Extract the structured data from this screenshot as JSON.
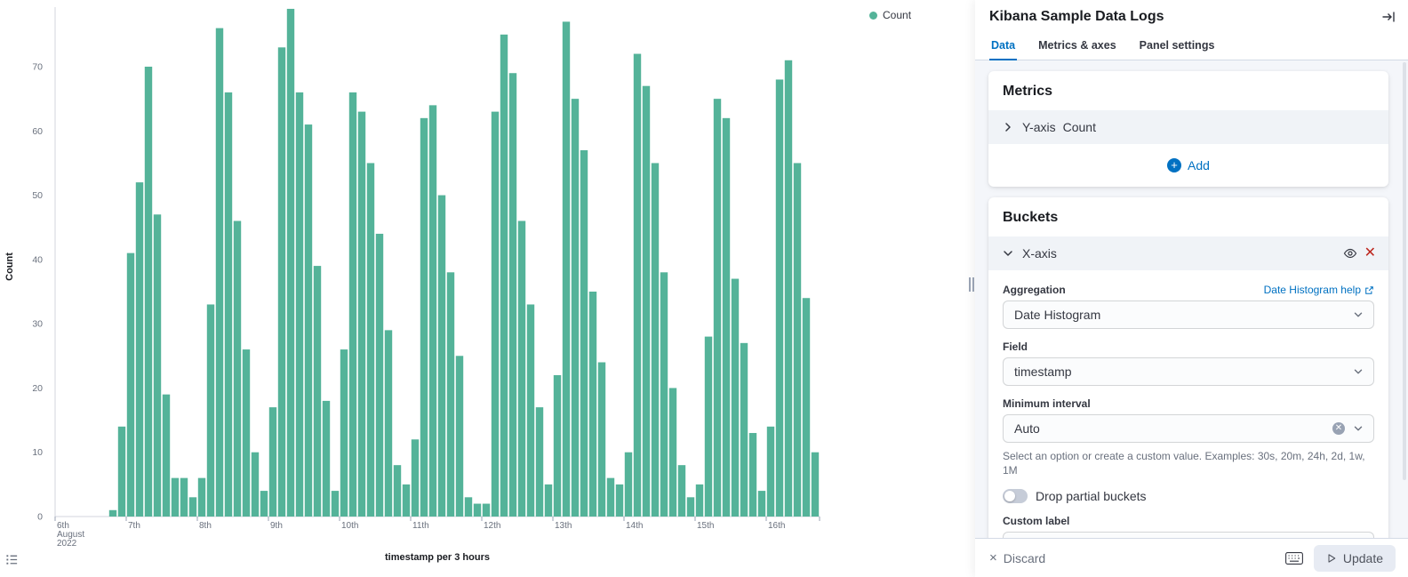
{
  "colors": {
    "bar_green": "#54B399",
    "accent_blue": "#0071c2",
    "danger_red": "#bd271e"
  },
  "chart_data": {
    "type": "bar",
    "title": "",
    "xlabel": "timestamp per 3 hours",
    "ylabel": "Count",
    "series_name": "Count",
    "bar_color": "#54B399",
    "grid": false,
    "legend": {
      "label": "Count",
      "position": "top-right"
    },
    "y_ticks": [
      0,
      10,
      20,
      30,
      40,
      50,
      60,
      70
    ],
    "ylim": [
      0,
      80
    ],
    "buckets_per_day": 8,
    "x_tick_labels": [
      "6th",
      "7th",
      "8th",
      "9th",
      "10th",
      "11th",
      "12th",
      "13th",
      "14th",
      "15th",
      "16th"
    ],
    "x_first_tick_sublabels": [
      "August",
      "2022"
    ],
    "values": [
      0,
      0,
      0,
      0,
      0,
      0,
      1,
      14,
      41,
      52,
      70,
      47,
      19,
      6,
      6,
      3,
      6,
      33,
      76,
      66,
      46,
      26,
      10,
      4,
      17,
      73,
      79,
      66,
      61,
      39,
      18,
      4,
      26,
      66,
      63,
      55,
      44,
      29,
      8,
      5,
      12,
      62,
      64,
      50,
      38,
      25,
      3,
      2,
      2,
      63,
      75,
      69,
      46,
      33,
      17,
      5,
      22,
      77,
      65,
      57,
      35,
      24,
      6,
      5,
      10,
      72,
      67,
      55,
      38,
      20,
      8,
      3,
      5,
      28,
      65,
      62,
      37,
      27,
      13,
      4,
      14,
      68,
      71,
      55,
      34,
      10
    ]
  },
  "panel": {
    "title": "Kibana Sample Data Logs",
    "tabs": [
      {
        "label": "Data",
        "active": true
      },
      {
        "label": "Metrics & axes",
        "active": false
      },
      {
        "label": "Panel settings",
        "active": false
      }
    ],
    "metrics": {
      "heading": "Metrics",
      "y_axis_label": "Y-axis",
      "y_axis_value": "Count",
      "add_label": "Add"
    },
    "buckets": {
      "heading": "Buckets",
      "x_axis_label": "X-axis",
      "aggregation_label": "Aggregation",
      "help_link_label": "Date Histogram help",
      "aggregation_value": "Date Histogram",
      "field_label": "Field",
      "field_value": "timestamp",
      "min_interval_label": "Minimum interval",
      "min_interval_value": "Auto",
      "help_text": "Select an option or create a custom value. Examples: 30s, 20m, 24h, 2d, 1w, 1M",
      "toggle_label": "Drop partial buckets",
      "custom_label_label": "Custom label",
      "custom_label_value": ""
    },
    "footer": {
      "discard_label": "Discard",
      "update_label": "Update"
    }
  }
}
